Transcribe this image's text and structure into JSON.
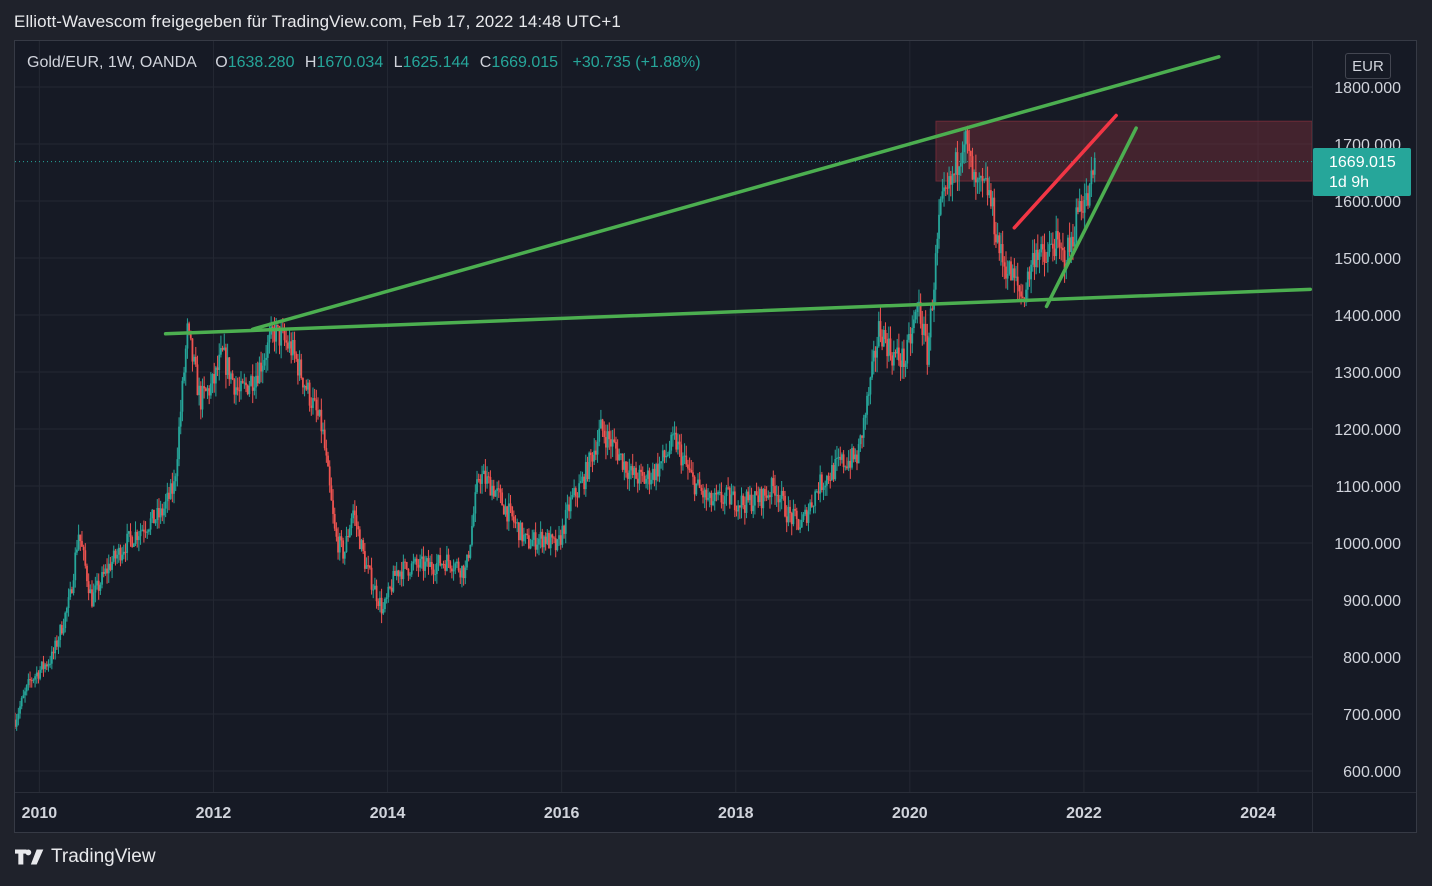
{
  "caption": "Elliott-Wavescom freigegeben für TradingView.com, Feb 17, 2022 14:48 UTC+1",
  "legend": {
    "symbol": "Gold/EUR, 1W, OANDA",
    "open_label": "O",
    "open": "1638.280",
    "high_label": "H",
    "high": "1670.034",
    "low_label": "L",
    "low": "1625.144",
    "close_label": "C",
    "close": "1669.015",
    "change": "+30.735 (+1.88%)"
  },
  "currency": "EUR",
  "price_tag": {
    "price": "1669.015",
    "countdown": "1d 9h"
  },
  "footer": {
    "brand": "TradingView"
  },
  "colors": {
    "up": "#26a69a",
    "down": "#ef5350",
    "trendline_green": "#4caf50",
    "trendline_red": "#f23645",
    "zone": "#7a2e3a"
  },
  "chart_data": {
    "type": "candlestick",
    "title": "Gold/EUR, 1W, OANDA",
    "x_tick_labels": [
      "2010",
      "2012",
      "2014",
      "2016",
      "2018",
      "2020",
      "2022",
      "2024"
    ],
    "y_tick_labels": [
      "1800.000",
      "1700.000",
      "1600.000",
      "1500.000",
      "1400.000",
      "1300.000",
      "1200.000",
      "1100.000",
      "1000.000",
      "900.000",
      "800.000",
      "700.000",
      "600.000"
    ],
    "xlim": [
      2009.72,
      2024.62
    ],
    "ylim": [
      560,
      1840
    ],
    "grid": true,
    "last_price": 1669.015,
    "price_path": [
      [
        2009.72,
        690
      ],
      [
        2009.9,
        760
      ],
      [
        2010.15,
        800
      ],
      [
        2010.35,
        900
      ],
      [
        2010.45,
        1020
      ],
      [
        2010.6,
        900
      ],
      [
        2010.8,
        960
      ],
      [
        2011.0,
        1000
      ],
      [
        2011.2,
        1030
      ],
      [
        2011.4,
        1050
      ],
      [
        2011.55,
        1100
      ],
      [
        2011.7,
        1370
      ],
      [
        2011.85,
        1250
      ],
      [
        2012.0,
        1280
      ],
      [
        2012.1,
        1330
      ],
      [
        2012.3,
        1260
      ],
      [
        2012.5,
        1300
      ],
      [
        2012.7,
        1370
      ],
      [
        2012.9,
        1340
      ],
      [
        2013.0,
        1300
      ],
      [
        2013.25,
        1200
      ],
      [
        2013.4,
        1010
      ],
      [
        2013.5,
        980
      ],
      [
        2013.6,
        1060
      ],
      [
        2013.75,
        960
      ],
      [
        2013.95,
        880
      ],
      [
        2014.1,
        950
      ],
      [
        2014.3,
        960
      ],
      [
        2014.5,
        960
      ],
      [
        2014.7,
        970
      ],
      [
        2014.9,
        950
      ],
      [
        2015.05,
        1120
      ],
      [
        2015.2,
        1100
      ],
      [
        2015.4,
        1050
      ],
      [
        2015.6,
        1000
      ],
      [
        2015.8,
        1010
      ],
      [
        2015.95,
        990
      ],
      [
        2016.1,
        1070
      ],
      [
        2016.25,
        1110
      ],
      [
        2016.45,
        1200
      ],
      [
        2016.6,
        1170
      ],
      [
        2016.8,
        1120
      ],
      [
        2016.95,
        1110
      ],
      [
        2017.1,
        1130
      ],
      [
        2017.3,
        1180
      ],
      [
        2017.5,
        1110
      ],
      [
        2017.7,
        1070
      ],
      [
        2017.9,
        1080
      ],
      [
        2018.1,
        1070
      ],
      [
        2018.3,
        1080
      ],
      [
        2018.45,
        1100
      ],
      [
        2018.6,
        1050
      ],
      [
        2018.75,
        1030
      ],
      [
        2018.95,
        1100
      ],
      [
        2019.2,
        1140
      ],
      [
        2019.4,
        1150
      ],
      [
        2019.55,
        1280
      ],
      [
        2019.65,
        1380
      ],
      [
        2019.8,
        1330
      ],
      [
        2019.95,
        1320
      ],
      [
        2020.1,
        1420
      ],
      [
        2020.2,
        1330
      ],
      [
        2020.35,
        1580
      ],
      [
        2020.5,
        1640
      ],
      [
        2020.62,
        1720
      ],
      [
        2020.75,
        1620
      ],
      [
        2020.9,
        1620
      ],
      [
        2021.05,
        1500
      ],
      [
        2021.2,
        1460
      ],
      [
        2021.3,
        1430
      ],
      [
        2021.45,
        1520
      ],
      [
        2021.55,
        1490
      ],
      [
        2021.65,
        1530
      ],
      [
        2021.75,
        1500
      ],
      [
        2021.85,
        1520
      ],
      [
        2021.95,
        1600
      ],
      [
        2022.05,
        1600
      ],
      [
        2022.13,
        1669
      ]
    ],
    "annotations": [
      {
        "kind": "trendline",
        "color": "green",
        "points": [
          [
            2012.45,
            1375
          ],
          [
            2023.55,
            1853
          ]
        ]
      },
      {
        "kind": "trendline",
        "color": "green",
        "points": [
          [
            2011.45,
            1367
          ],
          [
            2024.6,
            1445
          ]
        ]
      },
      {
        "kind": "trendline",
        "color": "green",
        "points": [
          [
            2021.57,
            1415
          ],
          [
            2022.6,
            1728
          ]
        ]
      },
      {
        "kind": "trendline",
        "color": "red",
        "points": [
          [
            2021.2,
            1553
          ],
          [
            2022.37,
            1750
          ]
        ]
      },
      {
        "kind": "zone",
        "color": "red",
        "x_from": 2020.3,
        "x_to": 2024.62,
        "y_from": 1635,
        "y_to": 1740
      }
    ]
  }
}
